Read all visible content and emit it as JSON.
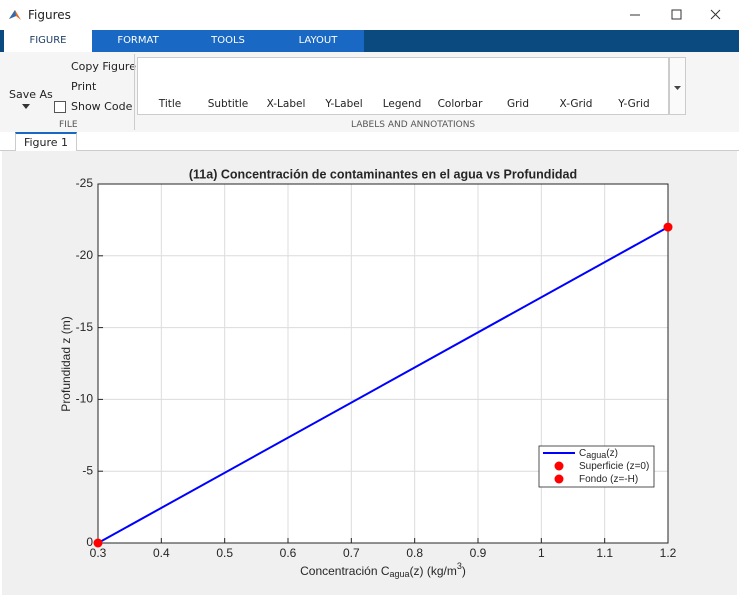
{
  "window": {
    "title": "Figures"
  },
  "tabs": [
    "FIGURE",
    "FORMAT",
    "TOOLS",
    "LAYOUT"
  ],
  "toolstrip": {
    "file": {
      "save_as": "Save As",
      "copy_figure": "Copy Figure",
      "print": "Print",
      "show_code": "Show Code",
      "label": "FILE"
    },
    "labels": {
      "items": [
        "Title",
        "Subtitle",
        "X-Label",
        "Y-Label",
        "Legend",
        "Colorbar",
        "Grid",
        "X-Grid",
        "Y-Grid"
      ],
      "label": "LABELS AND ANNOTATIONS"
    }
  },
  "document_tab": "Figure 1",
  "chart_data": {
    "type": "line",
    "title": "(11a) Concentración de contaminantes en el agua vs Profundidad",
    "xlabel": [
      {
        "text": "Concentración  C"
      },
      {
        "text": "agua",
        "script": "sub"
      },
      {
        "text": "(z)  (kg/m"
      },
      {
        "text": "3",
        "script": "sup"
      },
      {
        "text": ")"
      }
    ],
    "ylabel": "Profundidad z (m)",
    "xlim": [
      0.3,
      1.2
    ],
    "xticks": [
      0.3,
      0.4,
      0.5,
      0.6,
      0.7,
      0.8,
      0.9,
      1,
      1.1,
      1.2
    ],
    "ylim": [
      -25,
      0
    ],
    "yticks": [
      -25,
      -20,
      -15,
      -10,
      -5,
      0
    ],
    "y_reversed": true,
    "grid": true,
    "legend": "lower right",
    "series": [
      {
        "name": [
          {
            "text": "C"
          },
          {
            "text": "agua",
            "script": "sub"
          },
          {
            "text": "(z)"
          }
        ],
        "style": "line",
        "color": "#0000ff",
        "x": [
          0.3,
          1.2
        ],
        "values": [
          0,
          -22
        ]
      },
      {
        "name": [
          {
            "text": "Superficie (z=0)"
          }
        ],
        "style": "marker",
        "color": "#ff0000",
        "x": [
          0.3
        ],
        "values": [
          0
        ]
      },
      {
        "name": [
          {
            "text": "Fondo (z=-H)"
          }
        ],
        "style": "marker",
        "color": "#ff0000",
        "x": [
          1.2
        ],
        "values": [
          -22
        ]
      }
    ]
  }
}
